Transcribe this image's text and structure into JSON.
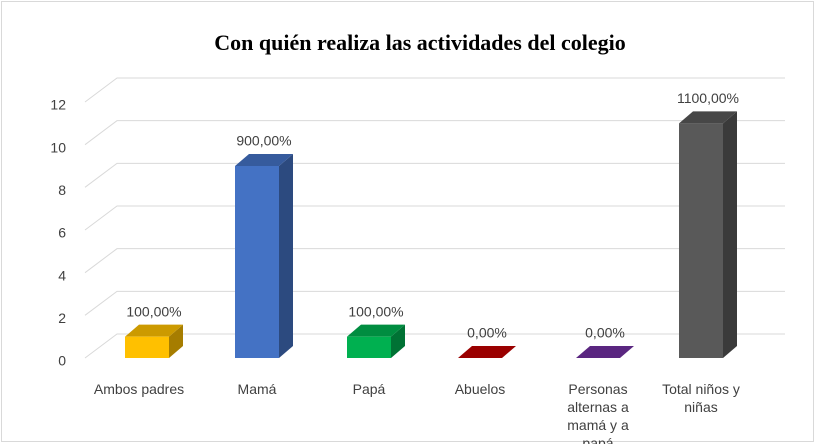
{
  "chart_data": {
    "type": "bar3d",
    "title": "Con quién realiza las actividades del colegio",
    "categories": [
      "Ambos padres",
      "Mamá",
      "Papá",
      "Abuelos",
      "Personas alternas a mamá y a papá",
      "Total niños y niñas"
    ],
    "values": [
      1,
      9,
      1,
      0,
      0,
      11
    ],
    "value_labels": [
      "100,00%",
      "900,00%",
      "100,00%",
      "0,00%",
      "0,00%",
      "1100,00%"
    ],
    "colors": [
      "#ffc000",
      "#4472c4",
      "#00b050",
      "#c00000",
      "#7030a0",
      "#595959"
    ],
    "ylim": [
      0,
      12
    ],
    "yticks": [
      0,
      2,
      4,
      6,
      8,
      10,
      12
    ],
    "grid": true
  }
}
